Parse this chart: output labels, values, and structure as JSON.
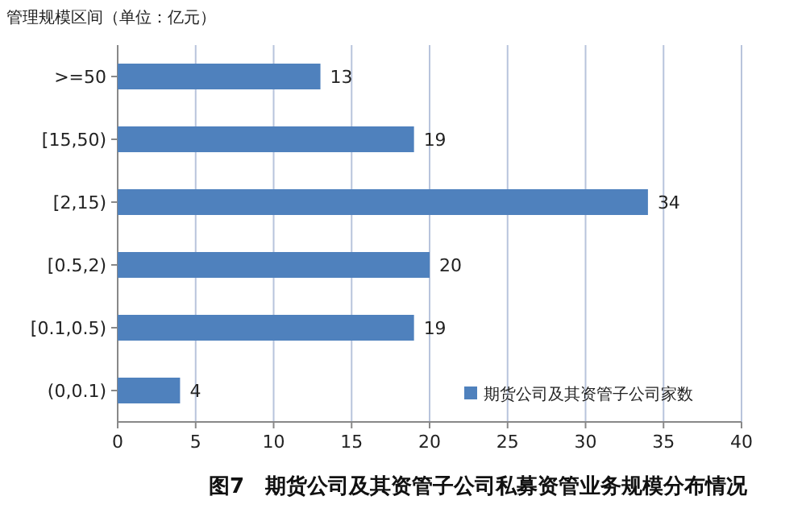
{
  "chart_data": {
    "type": "bar",
    "orientation": "horizontal",
    "title": "图7　期货公司及其资管子公司私募资管业务规模分布情况",
    "ylabel": "管理规模区间（单位：亿元）",
    "categories": [
      ">=50",
      "[15,50)",
      "[2,15)",
      "[0.5,2)",
      "[0.1,0.5)",
      "(0,0.1)"
    ],
    "series": [
      {
        "name": "期货公司及其资管子公司家数",
        "color": "#4f81bd",
        "values": [
          13,
          19,
          34,
          20,
          19,
          4
        ]
      }
    ],
    "xlim": [
      0,
      40
    ],
    "xticks": [
      0,
      5,
      10,
      15,
      20,
      25,
      30,
      35,
      40
    ],
    "grid": "x",
    "legend": "bottom right",
    "data_labels": true
  }
}
